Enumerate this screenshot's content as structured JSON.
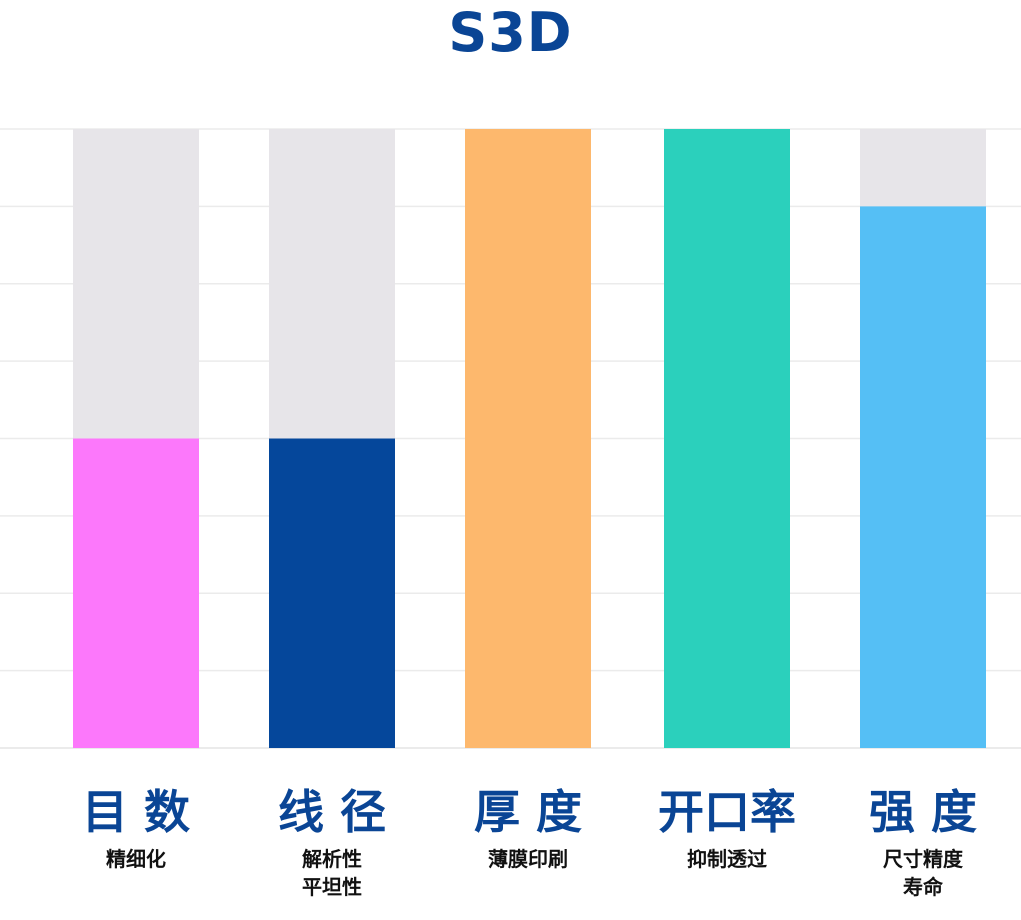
{
  "title": "S3D",
  "colors": {
    "title": "#0a4595",
    "background_bar": "#e7e5e9",
    "gridline": "#ebebeb"
  },
  "chart_data": {
    "type": "bar",
    "title": "S3D",
    "categories": [
      "目 数",
      "线 径",
      "厚 度",
      "开口率",
      "强 度"
    ],
    "subtitles": [
      "精细化",
      "解析性\n平坦性",
      "薄膜印刷",
      "抑制透过",
      "尺寸精度\n寿命"
    ],
    "values": [
      0.5,
      0.5,
      1.0,
      1.0,
      0.875
    ],
    "max": 1.0,
    "bar_colors": [
      "#fc78fb",
      "#05479b",
      "#fdb86d",
      "#2bd0bc",
      "#55bff5"
    ],
    "grid": true,
    "gridline_count": 9,
    "legend": "none"
  }
}
